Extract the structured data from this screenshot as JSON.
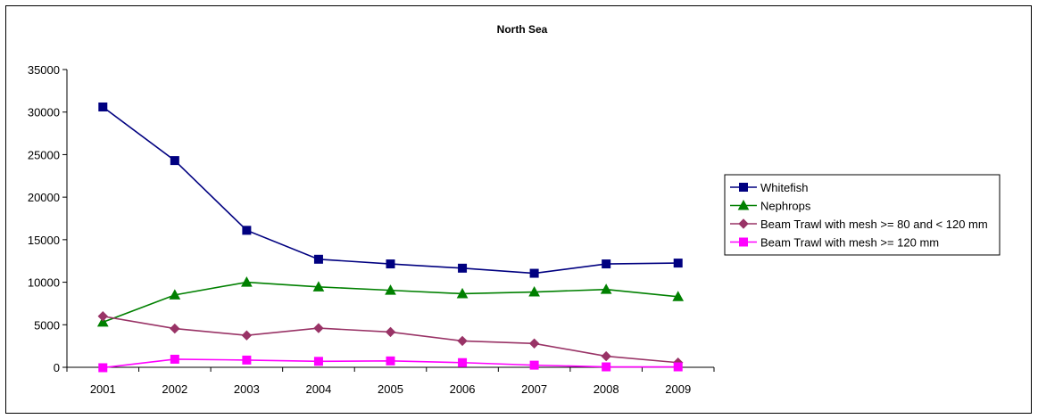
{
  "chart_data": {
    "type": "line",
    "title": "North Sea",
    "xlabel": "",
    "ylabel": "",
    "categories": [
      "2001",
      "2002",
      "2003",
      "2004",
      "2005",
      "2006",
      "2007",
      "2008",
      "2009"
    ],
    "ylim": [
      0,
      35000
    ],
    "yticks": [
      "0",
      "5000",
      "10000",
      "15000",
      "20000",
      "25000",
      "30000",
      "35000"
    ],
    "grid": false,
    "legend_position": "right",
    "series": [
      {
        "name": "Whitefish",
        "color": "#000080",
        "marker": "square",
        "values": [
          30600,
          24300,
          16100,
          12700,
          12150,
          11650,
          11050,
          12150,
          12250
        ]
      },
      {
        "name": "Nephrops",
        "color": "#008000",
        "marker": "triangle",
        "values": [
          5300,
          8500,
          10000,
          9450,
          9050,
          8650,
          8850,
          9150,
          8300
        ]
      },
      {
        "name": "Beam Trawl with mesh >= 80 and < 120 mm",
        "color": "#993366",
        "marker": "diamond",
        "values": [
          6000,
          4550,
          3750,
          4600,
          4150,
          3100,
          2800,
          1300,
          550
        ]
      },
      {
        "name": "Beam Trawl with mesh >= 120 mm",
        "color": "#FF00FF",
        "marker": "square",
        "values": [
          -50,
          950,
          850,
          700,
          750,
          550,
          250,
          50,
          50
        ]
      }
    ]
  }
}
